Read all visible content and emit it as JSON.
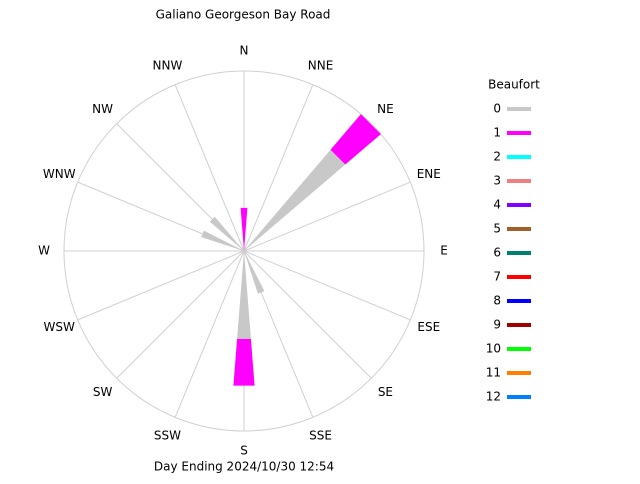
{
  "chart_data": {
    "type": "windrose",
    "title": "Galiano Georgeson Bay Road",
    "footer": "Day Ending 2024/10/30 12:54",
    "legend_title": "Beaufort",
    "categories": [
      "N",
      "NNE",
      "NE",
      "ENE",
      "E",
      "ESE",
      "SE",
      "SSE",
      "S",
      "SSW",
      "SW",
      "WSW",
      "W",
      "WNW",
      "NW",
      "NNW"
    ],
    "rlim": [
      0,
      100
    ],
    "series": [
      {
        "name": "0",
        "color": "#c8c8c8",
        "values": [
          0,
          0,
          74,
          0,
          0,
          0,
          0,
          25,
          49,
          0,
          0,
          0,
          0,
          25,
          25,
          0
        ]
      },
      {
        "name": "1",
        "color": "#ff00ff",
        "values": [
          24,
          0,
          26,
          0,
          0,
          0,
          0,
          0,
          26,
          0,
          0,
          0,
          0,
          0,
          0,
          0
        ]
      },
      {
        "name": "2",
        "color": "#00ffff",
        "values": [
          0,
          0,
          0,
          0,
          0,
          0,
          0,
          0,
          0,
          0,
          0,
          0,
          0,
          0,
          0,
          0
        ]
      },
      {
        "name": "3",
        "color": "#f08080",
        "values": [
          0,
          0,
          0,
          0,
          0,
          0,
          0,
          0,
          0,
          0,
          0,
          0,
          0,
          0,
          0,
          0
        ]
      },
      {
        "name": "4",
        "color": "#8000ff",
        "values": [
          0,
          0,
          0,
          0,
          0,
          0,
          0,
          0,
          0,
          0,
          0,
          0,
          0,
          0,
          0,
          0
        ]
      },
      {
        "name": "5",
        "color": "#a0602a",
        "values": [
          0,
          0,
          0,
          0,
          0,
          0,
          0,
          0,
          0,
          0,
          0,
          0,
          0,
          0,
          0,
          0
        ]
      },
      {
        "name": "6",
        "color": "#008070",
        "values": [
          0,
          0,
          0,
          0,
          0,
          0,
          0,
          0,
          0,
          0,
          0,
          0,
          0,
          0,
          0,
          0
        ]
      },
      {
        "name": "7",
        "color": "#ff0000",
        "values": [
          0,
          0,
          0,
          0,
          0,
          0,
          0,
          0,
          0,
          0,
          0,
          0,
          0,
          0,
          0,
          0
        ]
      },
      {
        "name": "8",
        "color": "#0000ff",
        "values": [
          0,
          0,
          0,
          0,
          0,
          0,
          0,
          0,
          0,
          0,
          0,
          0,
          0,
          0,
          0,
          0
        ]
      },
      {
        "name": "9",
        "color": "#a00000",
        "values": [
          0,
          0,
          0,
          0,
          0,
          0,
          0,
          0,
          0,
          0,
          0,
          0,
          0,
          0,
          0,
          0
        ]
      },
      {
        "name": "10",
        "color": "#00ff00",
        "values": [
          0,
          0,
          0,
          0,
          0,
          0,
          0,
          0,
          0,
          0,
          0,
          0,
          0,
          0,
          0,
          0
        ]
      },
      {
        "name": "11",
        "color": "#ff8000",
        "values": [
          0,
          0,
          0,
          0,
          0,
          0,
          0,
          0,
          0,
          0,
          0,
          0,
          0,
          0,
          0,
          0
        ]
      },
      {
        "name": "12",
        "color": "#0080ff",
        "values": [
          0,
          0,
          0,
          0,
          0,
          0,
          0,
          0,
          0,
          0,
          0,
          0,
          0,
          0,
          0,
          0
        ]
      }
    ]
  }
}
